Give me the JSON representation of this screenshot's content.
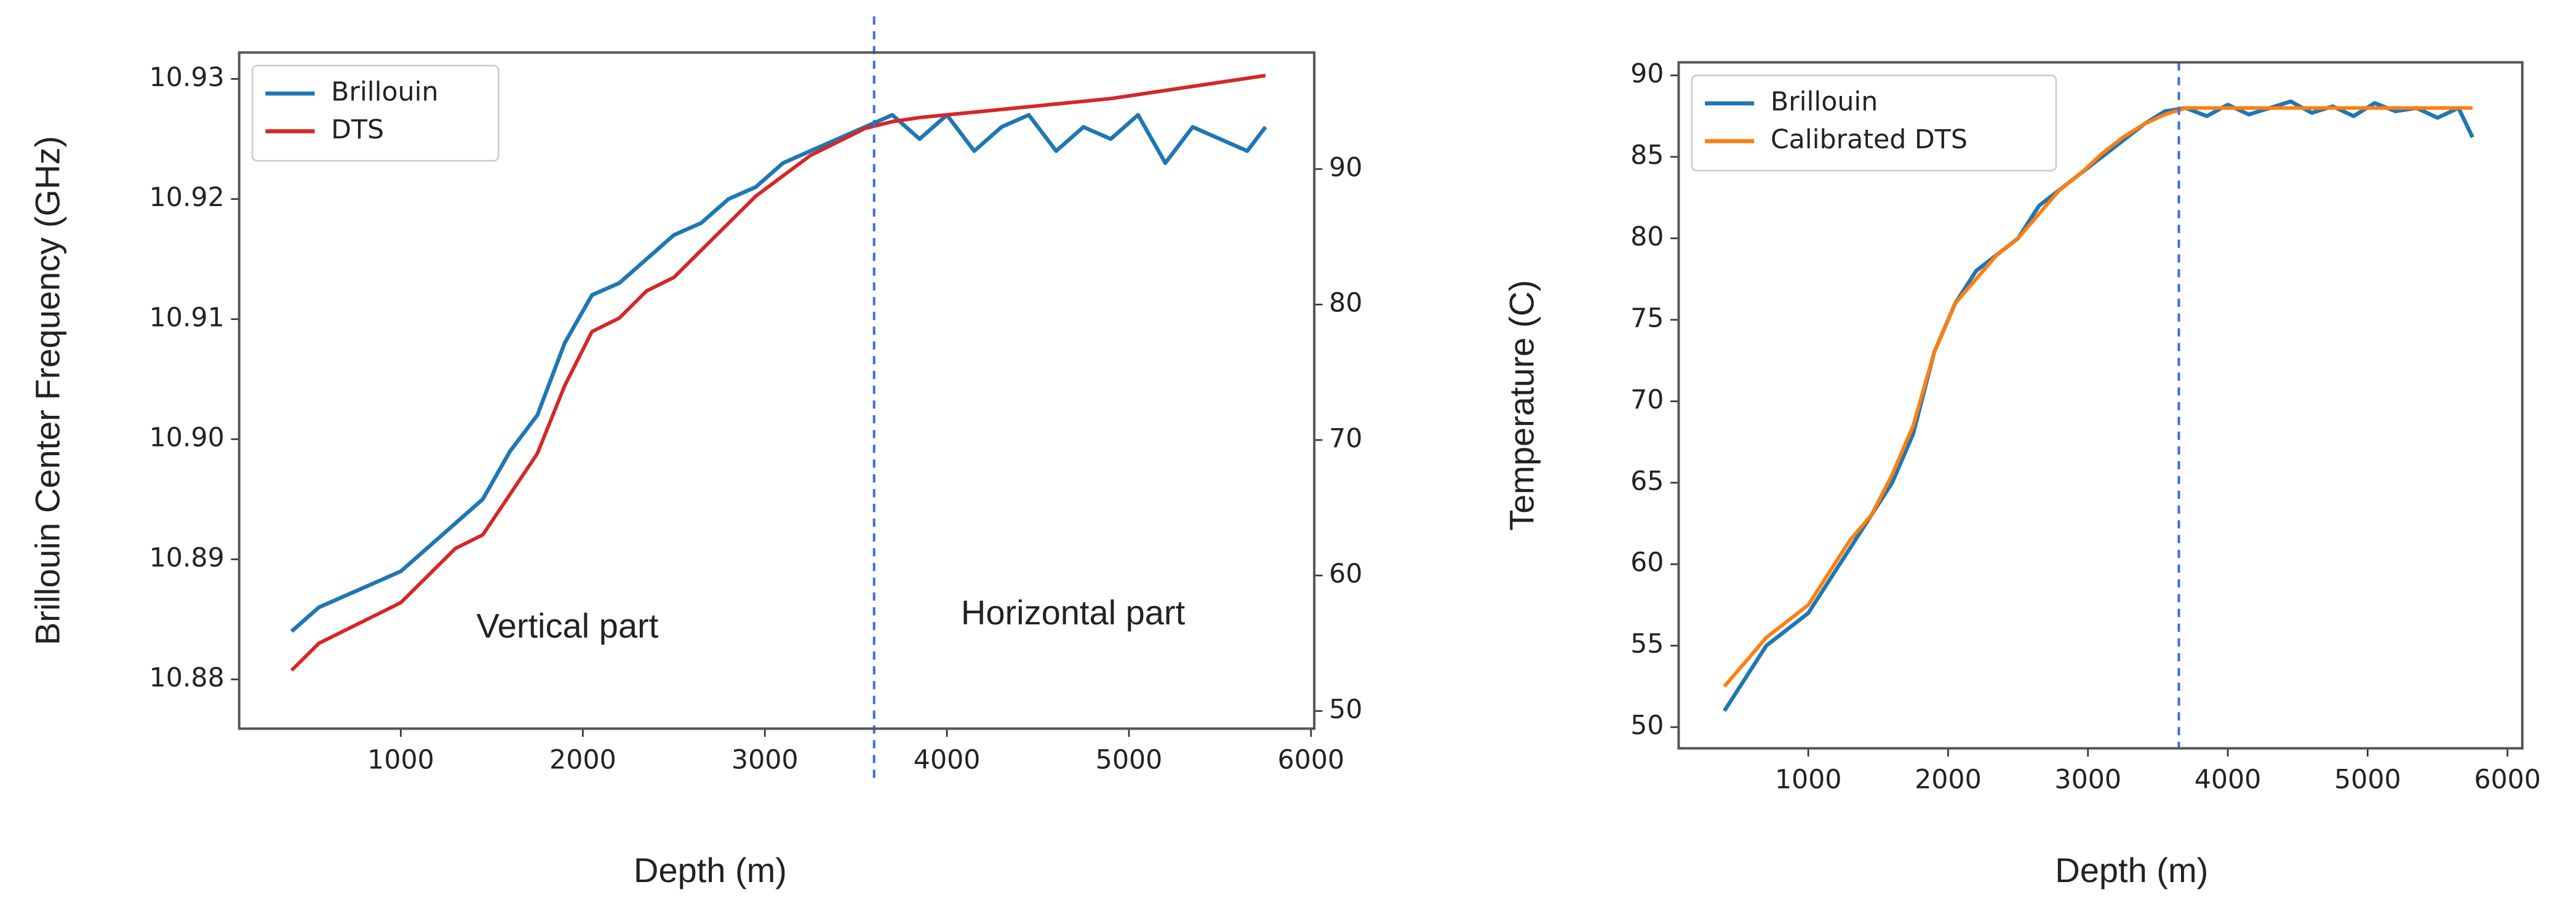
{
  "chart_data": [
    {
      "type": "line",
      "x_label": "Depth (m)",
      "y_label": "Brillouin Center Frequency (GHz)",
      "annotations": [
        "Vertical part",
        "Horizontal part"
      ],
      "divider": 3600,
      "x": [
        400,
        550,
        700,
        850,
        1000,
        1150,
        1300,
        1450,
        1600,
        1750,
        1900,
        2050,
        2200,
        2350,
        2500,
        2650,
        2800,
        2950,
        3100,
        3250,
        3400,
        3550,
        3700,
        3850,
        4000,
        4150,
        4300,
        4450,
        4600,
        4750,
        4900,
        5050,
        5200,
        5350,
        5500,
        5650,
        5750
      ],
      "series": [
        {
          "name": "Brillouin",
          "color": "#1f77b4",
          "values": [
            10.884,
            10.886,
            10.887,
            10.888,
            10.889,
            10.891,
            10.893,
            10.895,
            10.899,
            10.902,
            10.908,
            10.912,
            10.913,
            10.915,
            10.917,
            10.918,
            10.92,
            10.921,
            10.923,
            10.924,
            10.925,
            10.926,
            10.927,
            10.925,
            10.927,
            10.924,
            10.926,
            10.927,
            10.924,
            10.926,
            10.925,
            10.927,
            10.923,
            10.926,
            10.925,
            10.924,
            10.926
          ]
        },
        {
          "name": "DTS",
          "color": "#d62728",
          "axis": "y2",
          "values": [
            53,
            55,
            56,
            57,
            58,
            60,
            62,
            63,
            66,
            69,
            74,
            78,
            79,
            81,
            82,
            84,
            86,
            88,
            89.5,
            91,
            92,
            93,
            93.5,
            93.8,
            94,
            94.2,
            94.4,
            94.6,
            94.8,
            95,
            95.2,
            95.5,
            95.8,
            96.1,
            96.4,
            96.7,
            96.9
          ]
        }
      ],
      "xlim": [
        112,
        6018
      ],
      "xticks": [
        1000,
        2000,
        3000,
        4000,
        5000,
        6000
      ],
      "ylim": [
        10.8759,
        10.9322
      ],
      "yticks": [
        10.88,
        10.89,
        {
          "value": 10.9,
          "label": "10.90"
        },
        10.91,
        10.92,
        10.93
      ],
      "y2lim": [
        48.7,
        98.6
      ],
      "y2ticks": [
        50,
        60,
        70,
        80,
        90
      ],
      "legend": "upper left"
    },
    {
      "type": "line",
      "x_label": "Depth (m)",
      "y_label": "Temperature (C)",
      "divider": 3650,
      "x": [
        400,
        550,
        700,
        850,
        1000,
        1150,
        1300,
        1450,
        1600,
        1750,
        1900,
        2050,
        2200,
        2350,
        2500,
        2650,
        2800,
        2950,
        3100,
        3250,
        3400,
        3550,
        3700,
        3850,
        4000,
        4150,
        4300,
        4450,
        4600,
        4750,
        4900,
        5050,
        5200,
        5350,
        5500,
        5650,
        5750
      ],
      "series": [
        {
          "name": "Brillouin",
          "color": "#1f77b4",
          "values": [
            51,
            53,
            55,
            56,
            57,
            59,
            61,
            63,
            65,
            68,
            73,
            76,
            78,
            79,
            80,
            82,
            83,
            84,
            85,
            86,
            87,
            87.8,
            88,
            87.5,
            88.2,
            87.6,
            88,
            88.4,
            87.7,
            88.1,
            87.5,
            88.3,
            87.8,
            88,
            87.4,
            88,
            86.2
          ]
        },
        {
          "name": "Calibrated DTS",
          "color": "#ff7f0e",
          "values": [
            52.5,
            54,
            55.5,
            56.5,
            57.5,
            59.5,
            61.5,
            63,
            65.5,
            68.5,
            73,
            76,
            77.5,
            79,
            80,
            81.5,
            83,
            84,
            85.2,
            86.2,
            87,
            87.6,
            88,
            88,
            88,
            88,
            88,
            88,
            88,
            88,
            88,
            88,
            88,
            88,
            88,
            88,
            88
          ]
        }
      ],
      "xlim": [
        73,
        6106
      ],
      "xticks": [
        1000,
        2000,
        3000,
        4000,
        5000,
        6000
      ],
      "ylim": [
        48.7,
        90.8
      ],
      "yticks": [
        50,
        55,
        60,
        65,
        70,
        75,
        80,
        85,
        90
      ],
      "legend": "upper left"
    }
  ]
}
